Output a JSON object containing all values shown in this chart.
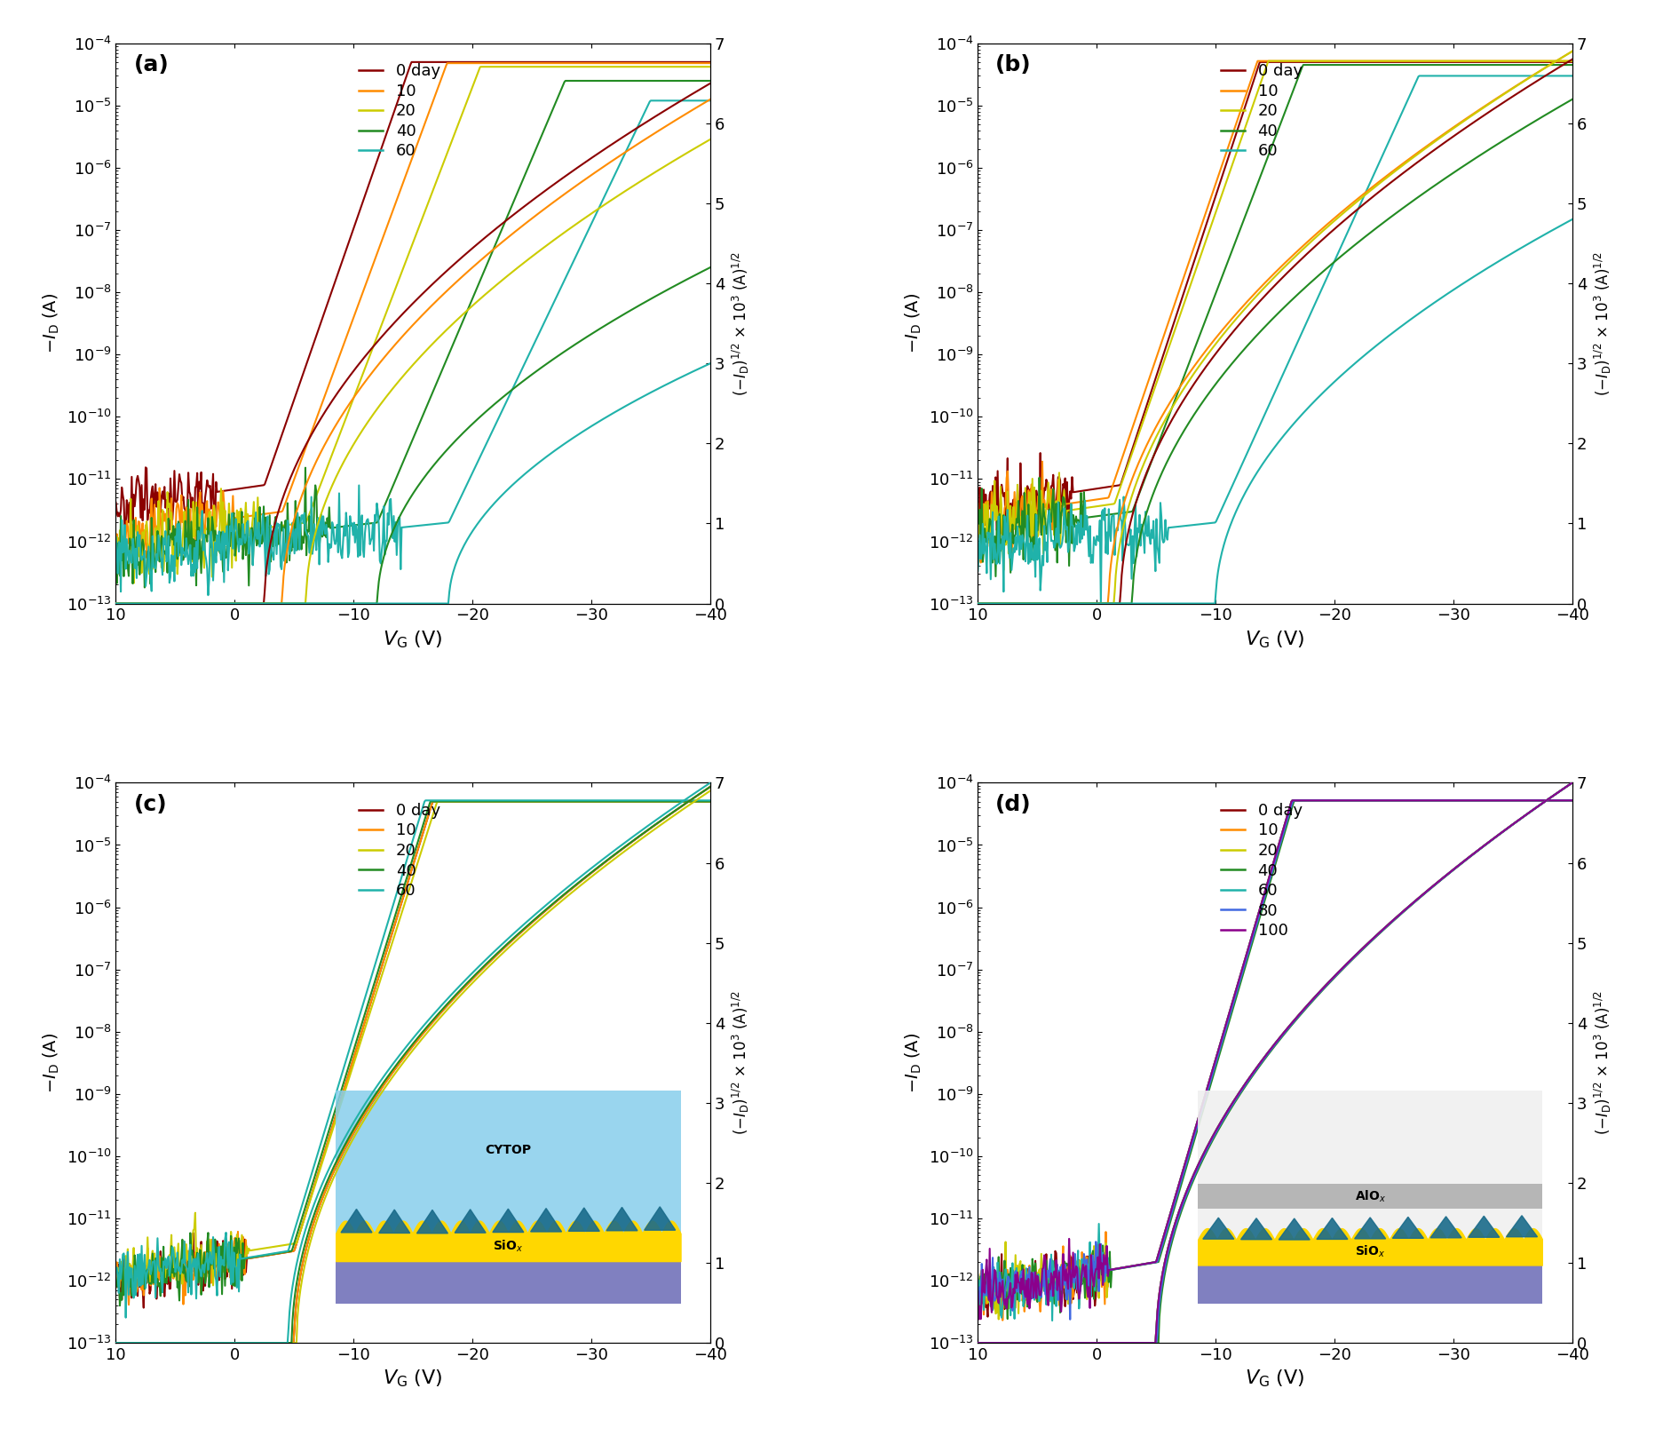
{
  "colors": {
    "0": "#8B0000",
    "10": "#FF8C00",
    "20": "#CCCC00",
    "40": "#228B22",
    "60": "#20B2AA",
    "80": "#4169E1",
    "100": "#8B008B"
  },
  "panel_days": {
    "a": [
      0,
      10,
      20,
      40,
      60
    ],
    "b": [
      0,
      10,
      20,
      40,
      60
    ],
    "c": [
      0,
      10,
      20,
      40,
      60
    ],
    "d": [
      0,
      10,
      20,
      40,
      60,
      80,
      100
    ]
  },
  "xlabel": "$V_{\\mathrm{G}}$ (V)",
  "ylabel_left": "$-I_{\\mathrm{D}}$ (A)",
  "ylabel_right": "$(-I_{\\mathrm{D}})^{1/2}$ × 10$^{3}$ (A)$^{1/2}$",
  "panel_labels": [
    "(a)",
    "(b)",
    "(c)",
    "(d)"
  ],
  "lw": 1.5,
  "background_color": "#ffffff",
  "panel_a_params": {
    "0": {
      "vth": -2.5,
      "ss": 0.55,
      "ioff": 8e-12,
      "imax": 5e-05,
      "sqrt_max": 0.0065
    },
    "10": {
      "vth": -4.0,
      "ss": 0.52,
      "ioff": 3e-12,
      "imax": 4.8e-05,
      "sqrt_max": 0.0063
    },
    "20": {
      "vth": -6.0,
      "ss": 0.5,
      "ioff": 2e-12,
      "imax": 4.2e-05,
      "sqrt_max": 0.0058
    },
    "40": {
      "vth": -12.0,
      "ss": 0.45,
      "ioff": 2e-12,
      "imax": 2.5e-05,
      "sqrt_max": 0.0042
    },
    "60": {
      "vth": -18.0,
      "ss": 0.4,
      "ioff": 2e-12,
      "imax": 1.2e-05,
      "sqrt_max": 0.003
    }
  },
  "panel_b_params": {
    "0": {
      "vth": -2.0,
      "ss": 0.58,
      "ioff": 8e-12,
      "imax": 5e-05,
      "sqrt_max": 0.0068
    },
    "10": {
      "vth": -1.0,
      "ss": 0.56,
      "ioff": 5e-12,
      "imax": 5.2e-05,
      "sqrt_max": 0.0069
    },
    "20": {
      "vth": -1.5,
      "ss": 0.55,
      "ioff": 4e-12,
      "imax": 5.2e-05,
      "sqrt_max": 0.0069
    },
    "40": {
      "vth": -3.0,
      "ss": 0.5,
      "ioff": 3e-12,
      "imax": 4.5e-05,
      "sqrt_max": 0.0063
    },
    "60": {
      "vth": -10.0,
      "ss": 0.42,
      "ioff": 2e-12,
      "imax": 3e-05,
      "sqrt_max": 0.0048
    }
  },
  "panel_c_params": {
    "0": {
      "vth": -5.0,
      "ss": 0.62,
      "ioff": 3e-12,
      "imax": 5e-05,
      "sqrt_max": 0.00695
    },
    "10": {
      "vth": -5.0,
      "ss": 0.62,
      "ioff": 3e-12,
      "imax": 5e-05,
      "sqrt_max": 0.00695
    },
    "20": {
      "vth": -5.2,
      "ss": 0.6,
      "ioff": 4e-12,
      "imax": 5e-05,
      "sqrt_max": 0.0069
    },
    "40": {
      "vth": -4.8,
      "ss": 0.62,
      "ioff": 3e-12,
      "imax": 5e-05,
      "sqrt_max": 0.00695
    },
    "60": {
      "vth": -4.5,
      "ss": 0.63,
      "ioff": 3e-12,
      "imax": 5.2e-05,
      "sqrt_max": 0.007
    }
  },
  "panel_d_params": {
    "0": {
      "vth": -5.0,
      "ss": 0.65,
      "ioff": 2e-12,
      "imax": 5.2e-05,
      "sqrt_max": 0.007
    },
    "10": {
      "vth": -5.1,
      "ss": 0.65,
      "ioff": 2e-12,
      "imax": 5.2e-05,
      "sqrt_max": 0.007
    },
    "20": {
      "vth": -5.0,
      "ss": 0.65,
      "ioff": 2e-12,
      "imax": 5.2e-05,
      "sqrt_max": 0.007
    },
    "40": {
      "vth": -5.2,
      "ss": 0.65,
      "ioff": 2e-12,
      "imax": 5.2e-05,
      "sqrt_max": 0.007
    },
    "60": {
      "vth": -5.0,
      "ss": 0.65,
      "ioff": 2e-12,
      "imax": 5.2e-05,
      "sqrt_max": 0.007
    },
    "80": {
      "vth": -5.1,
      "ss": 0.65,
      "ioff": 2e-12,
      "imax": 5.2e-05,
      "sqrt_max": 0.007
    },
    "100": {
      "vth": -5.0,
      "ss": 0.65,
      "ioff": 2e-12,
      "imax": 5.2e-05,
      "sqrt_max": 0.007
    }
  }
}
